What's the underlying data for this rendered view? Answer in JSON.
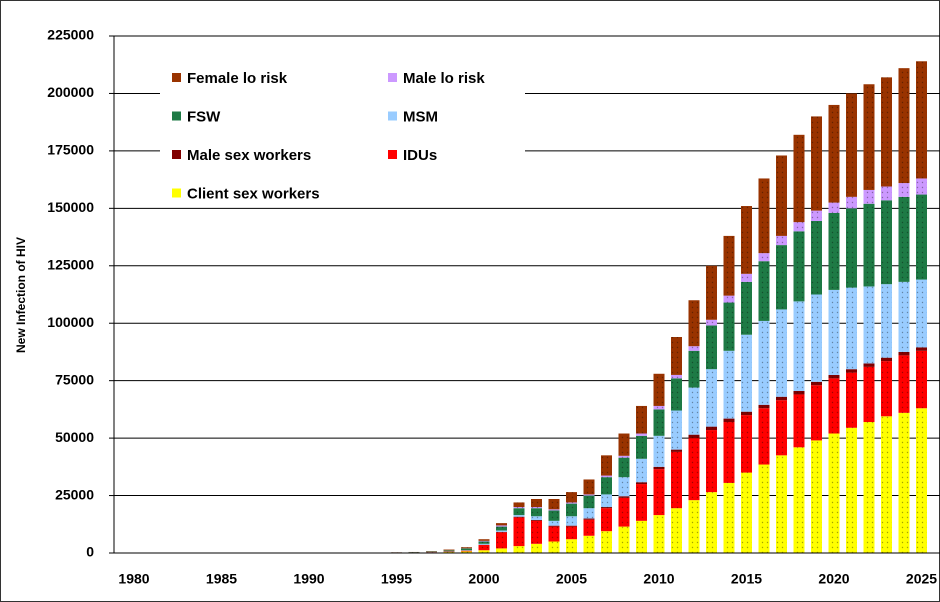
{
  "chart_data": {
    "type": "stacked_bar",
    "y_label": "New Infection of HIV",
    "categories": [
      "1980",
      null,
      null,
      null,
      null,
      "1985",
      null,
      null,
      null,
      null,
      "1990",
      null,
      null,
      null,
      null,
      "1995",
      null,
      null,
      null,
      null,
      "2000",
      null,
      null,
      null,
      null,
      "2005",
      null,
      null,
      null,
      null,
      "2010",
      null,
      null,
      null,
      null,
      "2015",
      null,
      null,
      null,
      null,
      "2020",
      null,
      null,
      null,
      null,
      "2025"
    ],
    "series": [
      {
        "name": "Female lo risk",
        "color": "#993300",
        "values": [
          0,
          0,
          0,
          0,
          0,
          0,
          0,
          0,
          0,
          0,
          0,
          0,
          0,
          0,
          20,
          50,
          70,
          150,
          320,
          450,
          700,
          1000,
          2000,
          3500,
          4500,
          4500,
          6500,
          8800,
          9700,
          12000,
          14000,
          16500,
          20000,
          23500,
          26000,
          29500,
          32500,
          35000,
          38000,
          41000,
          42500,
          45000,
          46000,
          47500,
          50000,
          51000
        ]
      },
      {
        "name": "Male lo risk",
        "color": "#cc99ff",
        "values": [
          0,
          0,
          0,
          0,
          0,
          0,
          0,
          0,
          0,
          0,
          0,
          0,
          0,
          0,
          5,
          10,
          20,
          30,
          50,
          100,
          300,
          500,
          500,
          500,
          500,
          500,
          500,
          700,
          800,
          1000,
          1500,
          1500,
          2000,
          2500,
          3000,
          3500,
          3500,
          4000,
          4000,
          4500,
          4500,
          5000,
          6000,
          6000,
          6000,
          7000
        ]
      },
      {
        "name": "FSW",
        "color": "#1e7a45",
        "values": [
          0,
          0,
          0,
          0,
          0,
          0,
          0,
          0,
          0,
          0,
          0,
          0,
          0,
          0,
          30,
          80,
          120,
          200,
          400,
          700,
          1000,
          1700,
          3000,
          3500,
          4500,
          5500,
          5500,
          7500,
          8500,
          10000,
          11500,
          14000,
          16000,
          19000,
          21000,
          23000,
          26000,
          28000,
          30500,
          32000,
          33500,
          34500,
          36000,
          36500,
          37000,
          37000
        ]
      },
      {
        "name": "MSM",
        "color": "#99ccff",
        "values": [
          0,
          0,
          0,
          0,
          0,
          0,
          0,
          0,
          0,
          0,
          0,
          0,
          0,
          0,
          10,
          20,
          30,
          50,
          100,
          200,
          400,
          600,
          700,
          1600,
          2100,
          4100,
          4500,
          5500,
          8300,
          10200,
          13500,
          17000,
          20500,
          25000,
          29500,
          33500,
          36500,
          38000,
          39000,
          38000,
          37000,
          35500,
          33500,
          32000,
          30500,
          29500
        ]
      },
      {
        "name": "Male sex workers",
        "color": "#800000",
        "values": [
          0,
          0,
          0,
          0,
          0,
          0,
          0,
          0,
          0,
          0,
          0,
          0,
          0,
          0,
          0,
          10,
          10,
          20,
          30,
          50,
          100,
          200,
          300,
          400,
          400,
          400,
          500,
          500,
          700,
          800,
          1000,
          1000,
          1500,
          1500,
          1500,
          1500,
          1500,
          1500,
          1500,
          1500,
          1500,
          1500,
          1500,
          1500,
          1500,
          1500
        ]
      },
      {
        "name": "IDUs",
        "color": "#ff0000",
        "values": [
          0,
          0,
          0,
          0,
          0,
          0,
          0,
          0,
          0,
          0,
          0,
          0,
          0,
          0,
          10,
          30,
          50,
          100,
          200,
          300,
          2300,
          7000,
          12500,
          10000,
          6500,
          5500,
          7000,
          10000,
          12500,
          16000,
          20000,
          24500,
          27000,
          27000,
          26500,
          25000,
          24500,
          24000,
          23000,
          24000,
          24000,
          24000,
          24000,
          24000,
          25000,
          25000
        ]
      },
      {
        "name": "Client sex workers",
        "color": "#ffff00",
        "values": [
          0,
          0,
          0,
          0,
          0,
          0,
          0,
          0,
          0,
          0,
          0,
          0,
          0,
          0,
          50,
          100,
          150,
          250,
          400,
          700,
          1200,
          2000,
          3000,
          4000,
          5000,
          6000,
          7500,
          9500,
          11500,
          14000,
          16500,
          19500,
          23000,
          26500,
          30500,
          35000,
          38500,
          42500,
          46000,
          49000,
          52000,
          54500,
          57000,
          59500,
          61000,
          63000
        ]
      }
    ],
    "ylim": [
      0,
      225000
    ],
    "yticks": [
      0,
      25000,
      50000,
      75000,
      100000,
      125000,
      150000,
      175000,
      200000,
      225000
    ],
    "grid": true
  }
}
